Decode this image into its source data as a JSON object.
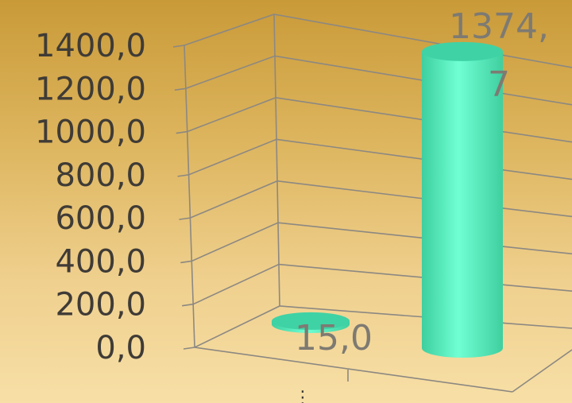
{
  "chart_data": {
    "type": "bar",
    "style": "3d-cylinder",
    "categories": [
      "",
      ""
    ],
    "values": [
      15.0,
      1374.7
    ],
    "data_labels": [
      "15,0",
      "1374,\n7"
    ],
    "y_tick_labels": [
      "0,0",
      "200,0",
      "400,0",
      "600,0",
      "800,0",
      "1000,0",
      "1200,0",
      "1400,0"
    ],
    "ylim": [
      0,
      1400
    ],
    "grid": true,
    "title": "",
    "xlabel": "",
    "ylabel": "",
    "colors": {
      "bar": "#5cf5c2",
      "bar_top": "#3fd2a5",
      "grid": "#8c8882",
      "text": "#3f3b36"
    }
  }
}
